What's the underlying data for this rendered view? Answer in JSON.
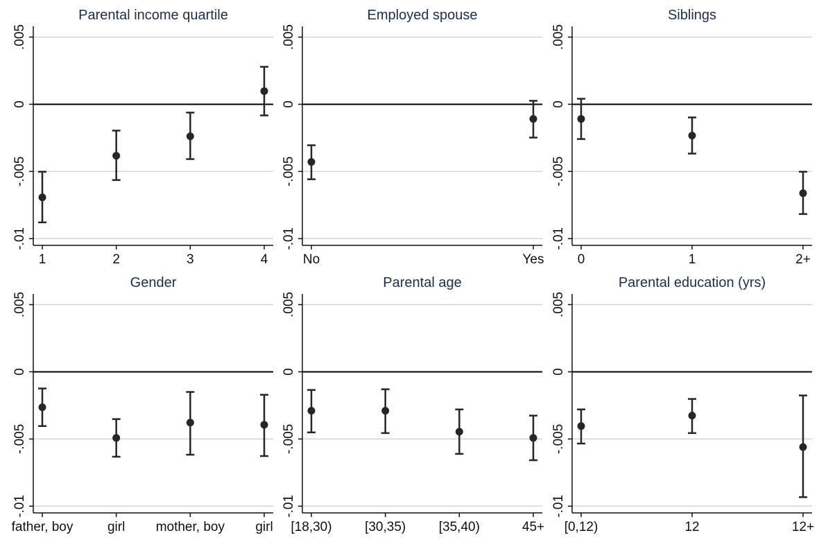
{
  "chart_data": [
    {
      "type": "errorbar",
      "title": "Parental income quartile",
      "categories": [
        "1",
        "2",
        "3",
        "4"
      ],
      "values": [
        -0.00693,
        -0.00383,
        -0.00238,
        0.00098
      ],
      "lower": [
        -0.00879,
        -0.00564,
        -0.00408,
        -0.00083
      ],
      "upper": [
        -0.00502,
        -0.00196,
        -0.00062,
        0.00279
      ],
      "color": "#262626",
      "ylim": [
        -0.0105,
        0.0058
      ],
      "yticks": [
        {
          "value": -0.01,
          "label": "-.01"
        },
        {
          "value": -0.005,
          "label": "-.005"
        },
        0,
        {
          "value": 0.005,
          "label": ".005"
        }
      ],
      "grid": true,
      "refline": 0
    },
    {
      "type": "errorbar",
      "title": "Employed spouse",
      "categories": [
        "No",
        "Yes"
      ],
      "values": [
        -0.00429,
        -0.00109
      ],
      "lower": [
        -0.00558,
        -0.00248
      ],
      "upper": [
        -0.00305,
        0.00026
      ],
      "color": "#262626",
      "ylim": [
        -0.0105,
        0.0058
      ],
      "yticks": [
        {
          "value": -0.01,
          "label": "-.01"
        },
        {
          "value": -0.005,
          "label": "-.005"
        },
        0,
        {
          "value": 0.005,
          "label": ".005"
        }
      ],
      "grid": true,
      "refline": 0
    },
    {
      "type": "errorbar",
      "title": "Siblings",
      "categories": [
        "0",
        "1",
        "2+"
      ],
      "values": [
        -0.00109,
        -0.00233,
        -0.00662
      ],
      "lower": [
        -0.00259,
        -0.00367,
        -0.00817
      ],
      "upper": [
        0.00041,
        -0.00098,
        -0.00502
      ],
      "color": "#262626",
      "ylim": [
        -0.0105,
        0.0058
      ],
      "yticks": [
        {
          "value": -0.01,
          "label": "-.01"
        },
        {
          "value": -0.005,
          "label": "-.005"
        },
        0,
        {
          "value": 0.005,
          "label": ".005"
        }
      ],
      "grid": true,
      "refline": 0
    },
    {
      "type": "errorbar",
      "title": "Gender",
      "categories": [
        "father, boy",
        "girl",
        "mother, boy",
        "girl"
      ],
      "values": [
        -0.00264,
        -0.00492,
        -0.00378,
        -0.00394
      ],
      "lower": [
        -0.00404,
        -0.00632,
        -0.00617,
        -0.00627
      ],
      "upper": [
        -0.00124,
        -0.00352,
        -0.0015,
        -0.00171
      ],
      "color": "#262626",
      "ylim": [
        -0.0105,
        0.0058
      ],
      "yticks": [
        {
          "value": -0.01,
          "label": "-.01"
        },
        {
          "value": -0.005,
          "label": "-.005"
        },
        0,
        {
          "value": 0.005,
          "label": ".005"
        }
      ],
      "grid": true,
      "refline": 0
    },
    {
      "type": "errorbar",
      "title": "Parental age",
      "categories": [
        "[18,30)",
        "[30,35)",
        "[35,40)",
        "45+"
      ],
      "values": [
        -0.0029,
        -0.0029,
        -0.00446,
        -0.00492
      ],
      "lower": [
        -0.00451,
        -0.00456,
        -0.00611,
        -0.00658
      ],
      "upper": [
        -0.00135,
        -0.0013,
        -0.0028,
        -0.00326
      ],
      "color": "#262626",
      "ylim": [
        -0.0105,
        0.0058
      ],
      "yticks": [
        {
          "value": -0.01,
          "label": "-.01"
        },
        {
          "value": -0.005,
          "label": "-.005"
        },
        0,
        {
          "value": 0.005,
          "label": ".005"
        }
      ],
      "grid": true,
      "refline": 0
    },
    {
      "type": "errorbar",
      "title": "Parental education (yrs)",
      "categories": [
        "[0,12)",
        "12",
        "12+"
      ],
      "values": [
        -0.00404,
        -0.00326,
        -0.0056
      ],
      "lower": [
        -0.00534,
        -0.00456,
        -0.00933
      ],
      "upper": [
        -0.0028,
        -0.00202,
        -0.00176
      ],
      "color": "#262626",
      "ylim": [
        -0.0105,
        0.0058
      ],
      "yticks": [
        {
          "value": -0.01,
          "label": "-.01"
        },
        {
          "value": -0.005,
          "label": "-.005"
        },
        0,
        {
          "value": 0.005,
          "label": ".005"
        }
      ],
      "grid": true,
      "refline": 0
    }
  ]
}
